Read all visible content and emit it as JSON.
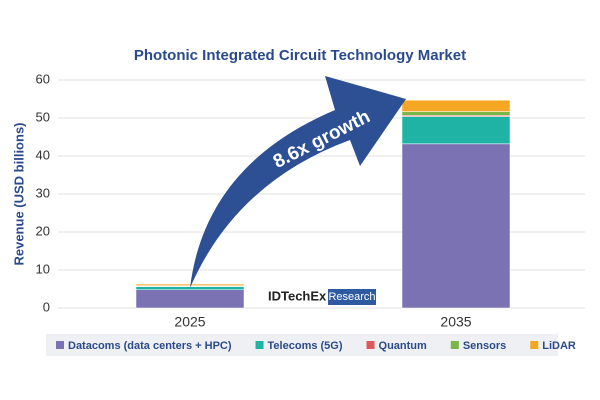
{
  "chart_data": {
    "type": "stacked-bar",
    "title": "Photonic Integrated Circuit Technology Market",
    "y_label": "Revenue (USD billions)",
    "categories": [
      "2025",
      "2035"
    ],
    "series": [
      {
        "name": "Datacoms (data centers + HPC)",
        "color": "#7b72b4",
        "values": [
          4.8,
          43.2
        ]
      },
      {
        "name": "Telecoms (5G)",
        "color": "#1fb3a6",
        "values": [
          0.8,
          7.2
        ]
      },
      {
        "name": "Quantum",
        "color": "#e0595a",
        "values": [
          0.1,
          0.3
        ]
      },
      {
        "name": "Sensors",
        "color": "#7ab648",
        "values": [
          0.2,
          1.0
        ]
      },
      {
        "name": "LiDAR",
        "color": "#f5a623",
        "values": [
          0.4,
          3.0
        ]
      }
    ],
    "ylim": [
      0,
      60
    ],
    "yticks": [
      0,
      10,
      20,
      30,
      40,
      50,
      60
    ],
    "grid": true,
    "annotation": "8.6x growth",
    "logo": {
      "name": "IDTechEx",
      "tag": "Research"
    }
  }
}
